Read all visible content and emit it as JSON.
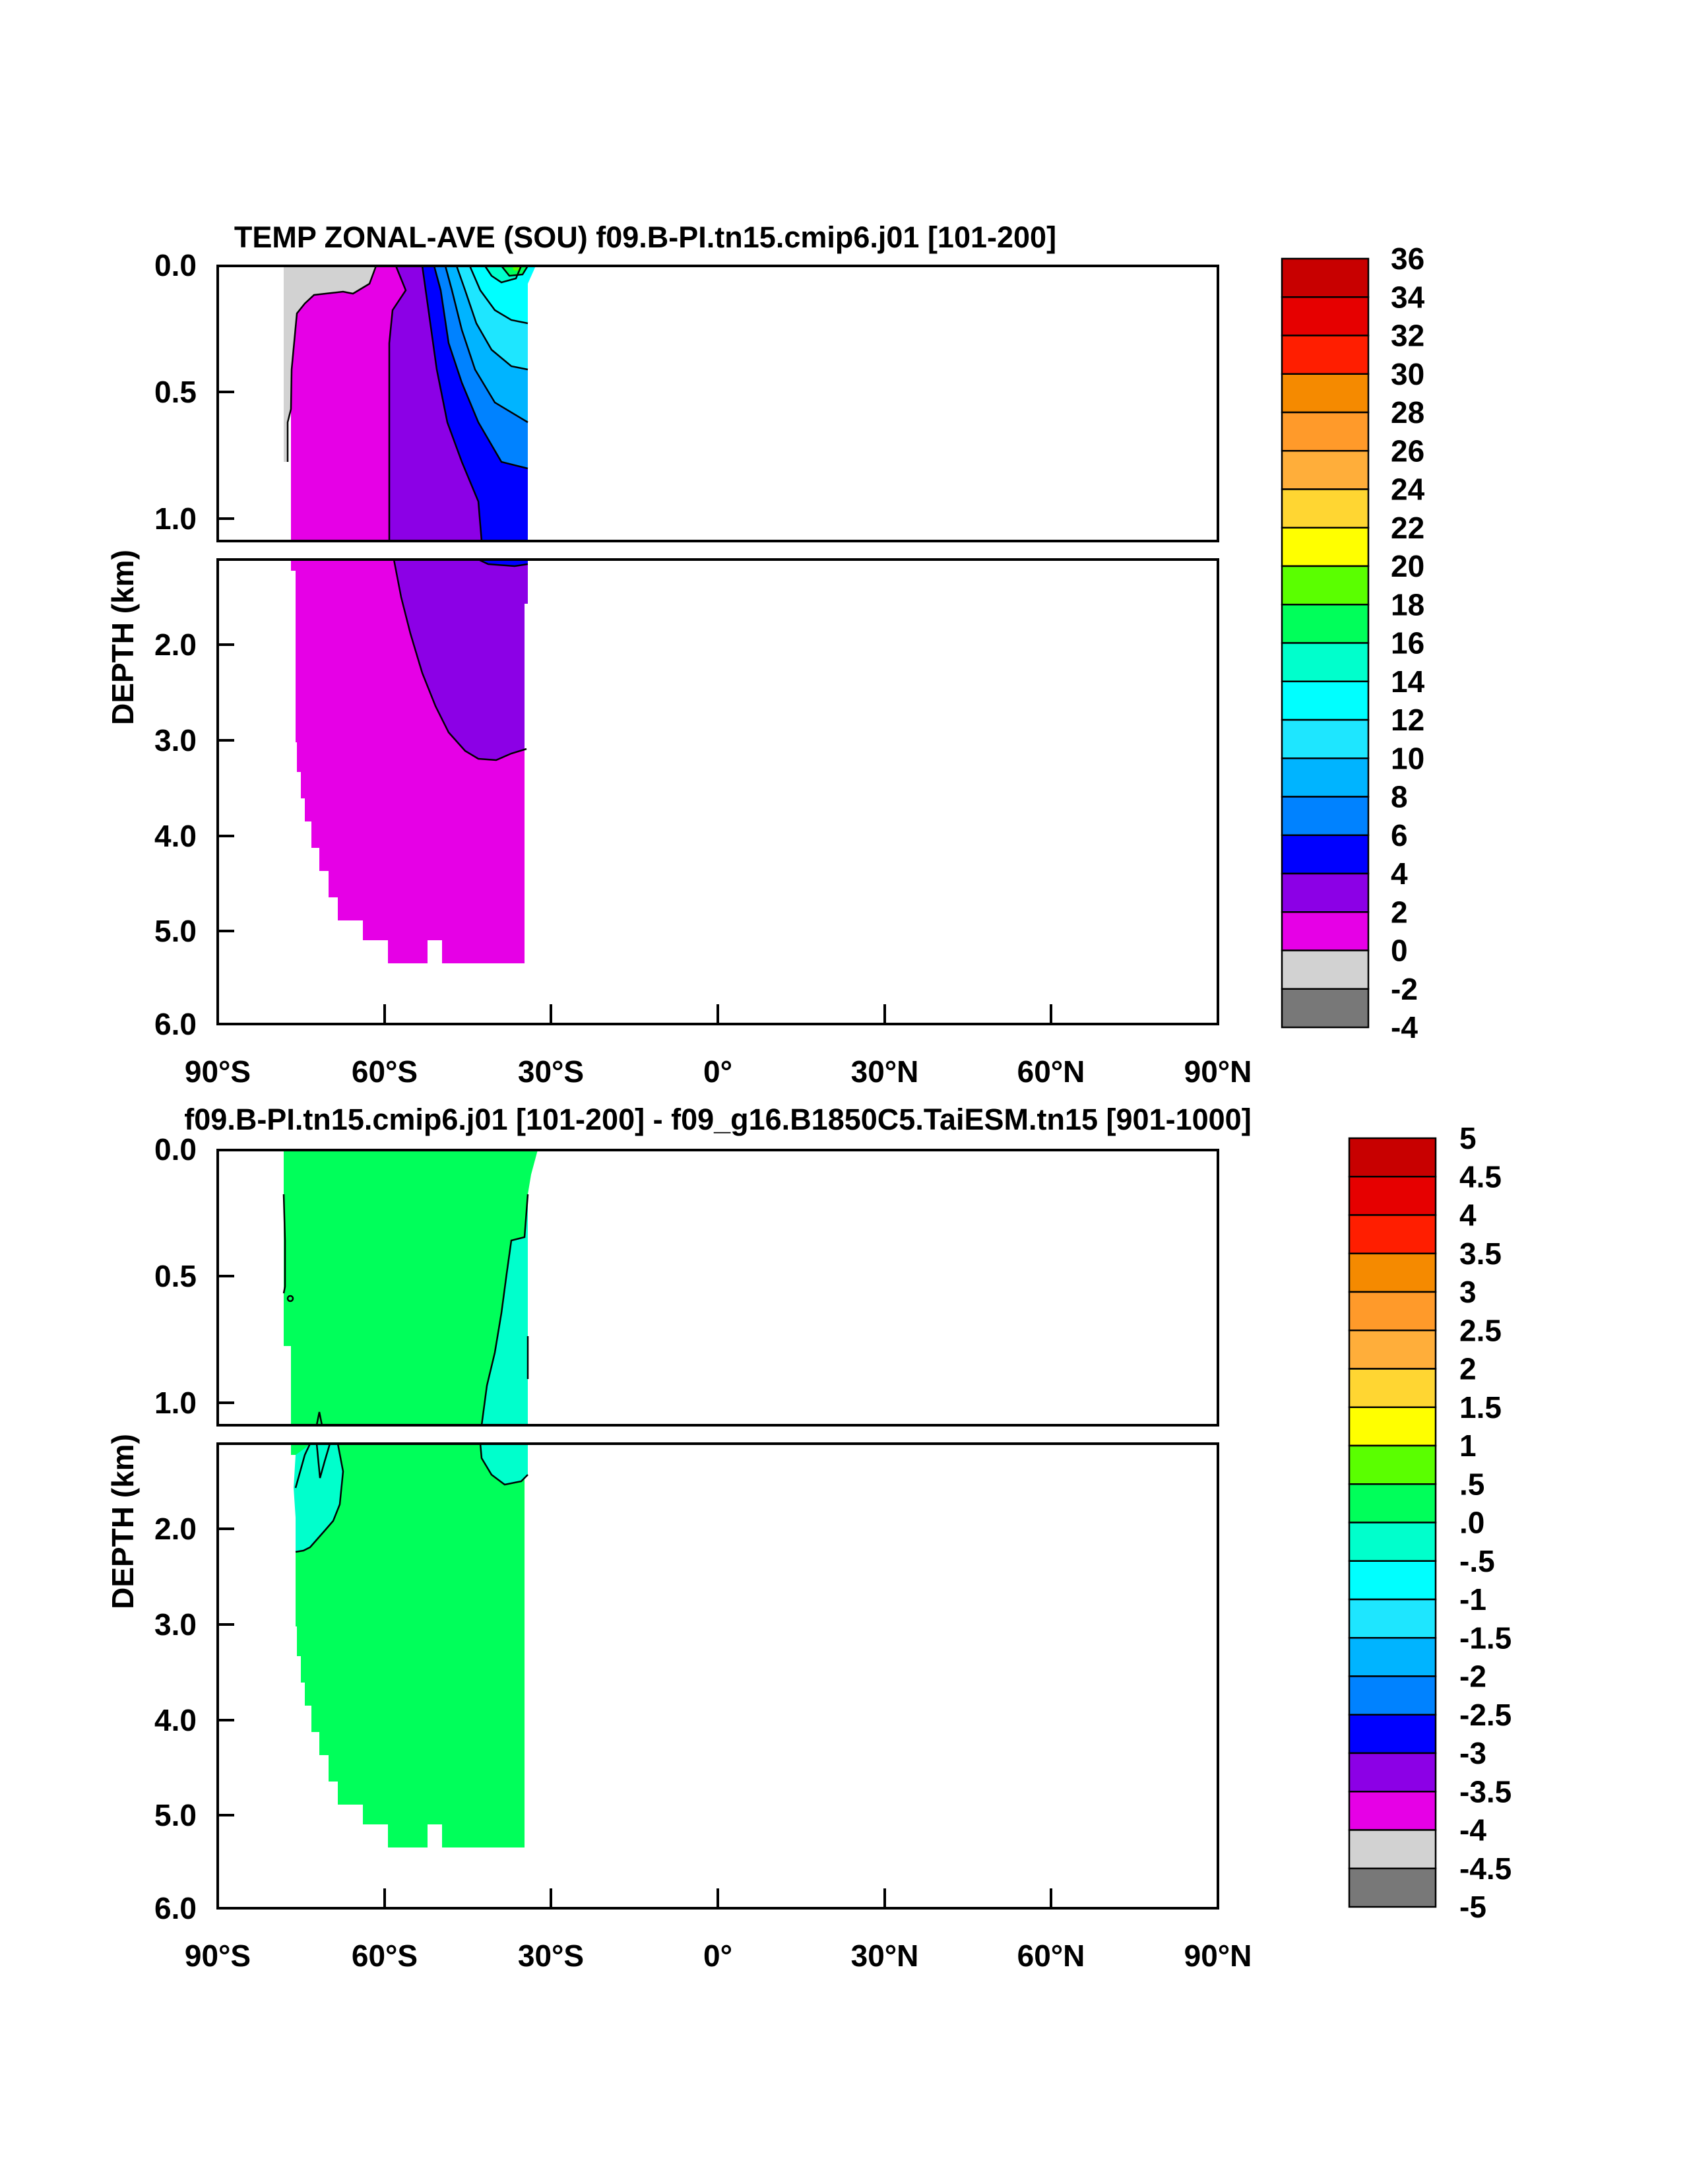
{
  "chart_data": [
    {
      "type": "heatmap",
      "title": "TEMP ZONAL-AVE (SOU) f09.B-PI.tn15.cmip6.j01 [101-200]",
      "xlabel": "",
      "ylabel": "DEPTH (km)",
      "x_ticks": [
        "90°S",
        "60°S",
        "30°S",
        "0°",
        "30°N",
        "60°N",
        "90°N"
      ],
      "y_ticks_upper": [
        "0.0",
        "0.5",
        "1.0"
      ],
      "y_ticks_lower": [
        "2.0",
        "3.0",
        "4.0",
        "5.0",
        "6.0"
      ],
      "xlim": [
        -90,
        90
      ],
      "ylim_upper_km": [
        0,
        1.1
      ],
      "ylim_lower_km": [
        1.15,
        6.0
      ],
      "colorbar": {
        "labels": [
          "36",
          "34",
          "32",
          "30",
          "28",
          "26",
          "24",
          "22",
          "20",
          "18",
          "16",
          "14",
          "12",
          "10",
          "8",
          "6",
          "4",
          "2",
          "0",
          "-2",
          "-4"
        ],
        "colors": [
          "#c80000",
          "#e60000",
          "#ff1e00",
          "#f58a00",
          "#ff9a2a",
          "#ffae3a",
          "#ffd632",
          "#ffff00",
          "#5aff00",
          "#00ff5a",
          "#00ffcc",
          "#00ffff",
          "#1ee6ff",
          "#00b4ff",
          "#0082ff",
          "#0000ff",
          "#8c00e6",
          "#e600e6",
          "#d2d2d2",
          "#787878"
        ]
      },
      "fields": {
        "gray_region": {
          "lat": [
            -78,
            -67
          ],
          "depth_km": [
            0,
            0.8
          ],
          "value_range": [
            -2,
            0
          ]
        },
        "magenta_region": {
          "lat": [
            -77,
            -34
          ],
          "depth_km": [
            0,
            5.4
          ],
          "value_range": [
            0,
            2
          ]
        },
        "violet_region": {
          "lat": [
            -60,
            -34
          ],
          "depth_km": [
            0,
            3.2
          ],
          "value_range": [
            2,
            4
          ]
        },
        "blue_region": {
          "lat": [
            -52,
            -34
          ],
          "depth_km": [
            0.1,
            1.15
          ],
          "value_range": [
            4,
            6
          ]
        },
        "warm_surface": {
          "lat": [
            -45,
            -33
          ],
          "depth_km": [
            0,
            0.8
          ],
          "value_range": [
            6,
            18
          ]
        }
      }
    },
    {
      "type": "heatmap",
      "title": "f09.B-PI.tn15.cmip6.j01 [101-200] - f09_g16.B1850C5.TaiESM.tn15 [901-1000]",
      "xlabel": "",
      "ylabel": "DEPTH (km)",
      "x_ticks": [
        "90°S",
        "60°S",
        "30°S",
        "0°",
        "30°N",
        "60°N",
        "90°N"
      ],
      "y_ticks_upper": [
        "0.0",
        "0.5",
        "1.0"
      ],
      "y_ticks_lower": [
        "2.0",
        "3.0",
        "4.0",
        "5.0",
        "6.0"
      ],
      "xlim": [
        -90,
        90
      ],
      "ylim_upper_km": [
        0,
        1.1
      ],
      "ylim_lower_km": [
        1.15,
        6.0
      ],
      "colorbar": {
        "labels": [
          "5",
          "4.5",
          "4",
          "3.5",
          "3",
          "2.5",
          "2",
          "1.5",
          "1",
          ".5",
          ".0",
          "-.5",
          "-1",
          "-1.5",
          "-2",
          "-2.5",
          "-3",
          "-3.5",
          "-4",
          "-4.5",
          "-5"
        ],
        "colors": [
          "#c80000",
          "#e60000",
          "#ff1e00",
          "#f58a00",
          "#ff9a2a",
          "#ffae3a",
          "#ffd632",
          "#ffff00",
          "#5aff00",
          "#00ff5a",
          "#00ffcc",
          "#00ffff",
          "#1ee6ff",
          "#00b4ff",
          "#0082ff",
          "#0000ff",
          "#8c00e6",
          "#e600e6",
          "#d2d2d2",
          "#787878"
        ]
      },
      "fields": {
        "green_region": {
          "lat": [
            -78,
            -34
          ],
          "depth_km": [
            0,
            5.4
          ],
          "value_range": [
            0,
            0.5
          ]
        },
        "aqua_region_north": {
          "lat": [
            -43,
            -34
          ],
          "depth_km": [
            0.35,
            1.6
          ],
          "value_range": [
            -0.5,
            0
          ]
        },
        "aqua_region_south": {
          "lat": [
            -76,
            -66
          ],
          "depth_km": [
            1.15,
            2.3
          ],
          "value_range": [
            -0.5,
            0
          ]
        }
      }
    }
  ]
}
